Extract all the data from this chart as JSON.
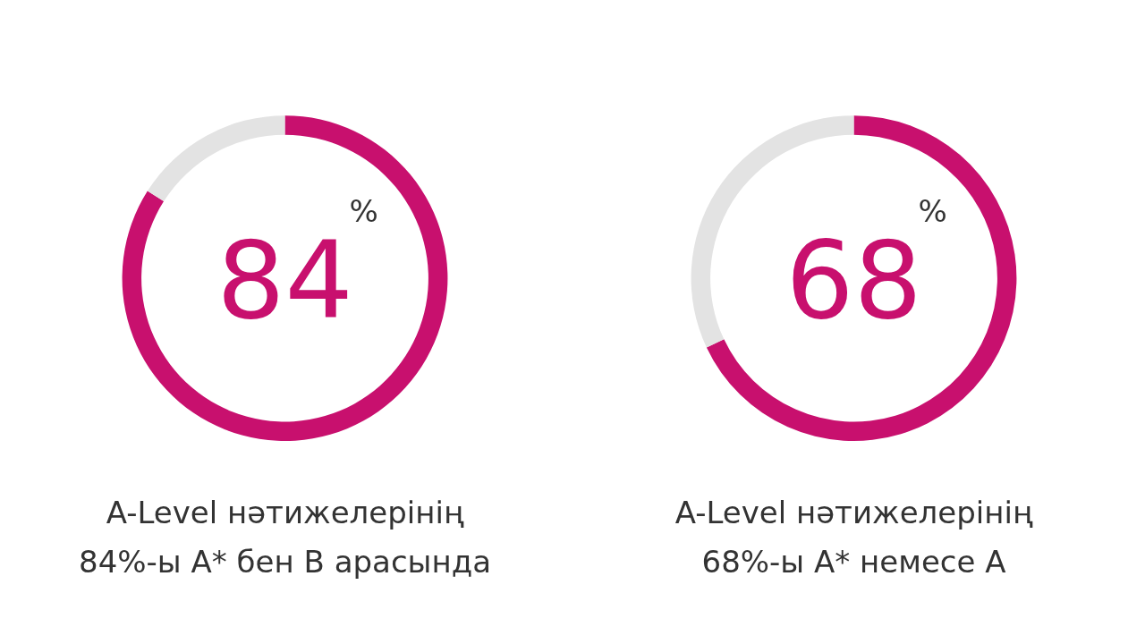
{
  "chart_data": [
    {
      "type": "donut",
      "categories": [
        null,
        null
      ],
      "values": [
        84,
        16
      ],
      "colors": [
        "#c8106e",
        "#e3e3e3"
      ],
      "value_labels": [
        "84",
        null
      ],
      "annotations": [
        "%",
        "A-Level нәтижелерінің\n84%-ы A* бен B арасында"
      ]
    },
    {
      "type": "donut",
      "categories": [
        null,
        null
      ],
      "values": [
        68,
        32
      ],
      "colors": [
        "#c8106e",
        "#e3e3e3"
      ],
      "value_labels": [
        "68",
        null
      ],
      "annotations": [
        "%",
        "A-Level нәтижелерінің\n68%-ы A* немесе A"
      ]
    }
  ]
}
